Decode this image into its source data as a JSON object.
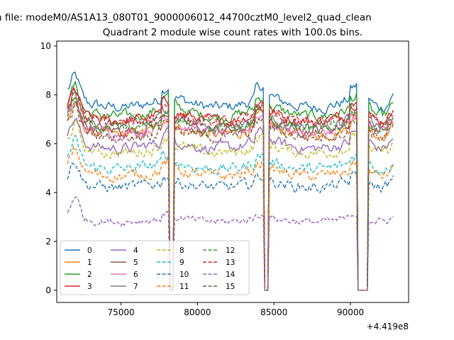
{
  "suptitle": "n file: modeM0/AS1A13_080T01_9000006012_44700cztM0_level2_quad_clean",
  "chart_data": {
    "type": "line",
    "title": "Quadrant 2 module wise count rates with 100.0s bins.",
    "xlabel": "",
    "ylabel": "",
    "x_offset_label": "+4.419e8",
    "xlim": [
      70800,
      93800
    ],
    "ylim": [
      -0.5,
      10.2
    ],
    "x_ticks": [
      75000,
      80000,
      85000,
      90000
    ],
    "x_tick_labels": [
      "75000",
      "80000",
      "85000",
      "90000"
    ],
    "y_ticks": [
      0,
      2,
      4,
      6,
      8,
      10
    ],
    "y_tick_labels": [
      "0",
      "2",
      "4",
      "6",
      "8",
      "10"
    ],
    "x_range": [
      71500,
      92800
    ],
    "bin_size_s": 100,
    "gaps": [
      [
        78200,
        78400
      ],
      [
        84350,
        84650
      ],
      [
        90500,
        91100
      ]
    ],
    "grid": false,
    "legend_position": "lower-left",
    "legend_columns": 4,
    "series": [
      {
        "name": "0",
        "color": "#1f77b4",
        "dash": "solid",
        "baseline": 8.0
      },
      {
        "name": "1",
        "color": "#ff7f0e",
        "dash": "solid",
        "baseline": 6.8
      },
      {
        "name": "2",
        "color": "#2ca02c",
        "dash": "solid",
        "baseline": 7.6
      },
      {
        "name": "3",
        "color": "#d62728",
        "dash": "solid",
        "baseline": 7.4
      },
      {
        "name": "4",
        "color": "#9467bd",
        "dash": "solid",
        "baseline": 6.2
      },
      {
        "name": "5",
        "color": "#8c564b",
        "dash": "solid",
        "baseline": 7.0
      },
      {
        "name": "6",
        "color": "#e377c2",
        "dash": "solid",
        "baseline": 6.9
      },
      {
        "name": "7",
        "color": "#7f7f7f",
        "dash": "solid",
        "baseline": 7.2
      },
      {
        "name": "8",
        "color": "#bcbd22",
        "dash": "dashed",
        "baseline": 6.0
      },
      {
        "name": "9",
        "color": "#17becf",
        "dash": "dashed",
        "baseline": 5.3
      },
      {
        "name": "10",
        "color": "#1f77b4",
        "dash": "dashed",
        "baseline": 4.5
      },
      {
        "name": "11",
        "color": "#ff7f0e",
        "dash": "dashed",
        "baseline": 5.0
      },
      {
        "name": "12",
        "color": "#2ca02c",
        "dash": "dashed",
        "baseline": 7.0
      },
      {
        "name": "13",
        "color": "#d62728",
        "dash": "dashed",
        "baseline": 7.3
      },
      {
        "name": "14",
        "color": "#9467bd",
        "dash": "dashed",
        "baseline": 3.0
      },
      {
        "name": "15",
        "color": "#8c564b",
        "dash": "dashed",
        "baseline": 6.7
      }
    ]
  }
}
